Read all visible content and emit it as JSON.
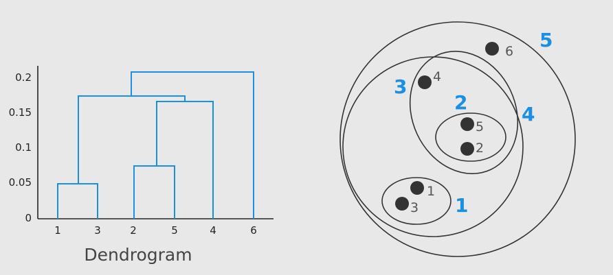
{
  "dendrogram": {
    "caption": "Dendrogram",
    "y_ticks": [
      "0.2",
      "0.15",
      "0.1",
      "0.05",
      "0"
    ],
    "leaves": [
      "1",
      "3",
      "2",
      "5",
      "4",
      "6"
    ],
    "merges": [
      {
        "left": "1",
        "right": "3",
        "height": 0.05
      },
      {
        "left": "2",
        "right": "5",
        "height": 0.075
      },
      {
        "left": "{2,5}",
        "right": "4",
        "height": 0.167
      },
      {
        "left": "{1,3}",
        "right": "{2,5,4}",
        "height": 0.174
      },
      {
        "left": "{1,3,2,5,4}",
        "right": "6",
        "height": 0.21
      }
    ]
  },
  "cluster_diagram": {
    "points": [
      "1",
      "2",
      "3",
      "4",
      "5",
      "6"
    ],
    "cluster_labels": [
      "1",
      "2",
      "3",
      "4",
      "5"
    ]
  },
  "colors": {
    "line": "#1a8fe3",
    "axis": "#222222",
    "ellipse": "#333333",
    "point": "#333333"
  }
}
